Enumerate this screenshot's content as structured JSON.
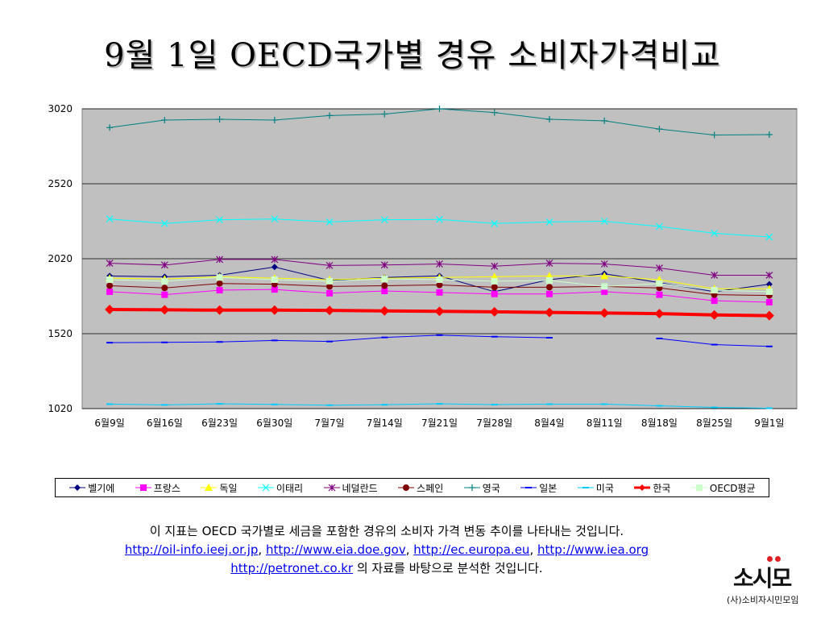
{
  "title": "9월 1일 OECD국가별 경유 소비자가격비교",
  "chart_data": {
    "type": "line",
    "categories": [
      "6월9일",
      "6월16일",
      "6월23일",
      "6월30일",
      "7월7일",
      "7월14일",
      "7월21일",
      "7월28일",
      "8월4일",
      "8월11일",
      "8월18일",
      "8월25일",
      "9월1일"
    ],
    "ylim": [
      1020,
      3020
    ],
    "yticks": [
      1020,
      1520,
      2020,
      2520,
      3020
    ],
    "grid": true,
    "legend": "bottom",
    "plot_background": "#c0c0c0",
    "series": [
      {
        "name": "벨기에",
        "color": "#000080",
        "marker": "diamond",
        "width": 1,
        "values": [
          1905,
          1900,
          1910,
          1965,
          1875,
          1895,
          1905,
          1800,
          1880,
          1920,
          1860,
          1800,
          1850
        ]
      },
      {
        "name": "프랑스",
        "color": "#ff00ff",
        "marker": "square",
        "width": 1,
        "values": [
          1800,
          1780,
          1810,
          1815,
          1790,
          1805,
          1795,
          1785,
          1785,
          1800,
          1780,
          1740,
          1730
        ]
      },
      {
        "name": "독일",
        "color": "#ffff00",
        "marker": "triangle",
        "width": 1,
        "values": [
          1890,
          1885,
          1900,
          1890,
          1880,
          1890,
          1895,
          1900,
          1905,
          1905,
          1880,
          1820,
          1820
        ]
      },
      {
        "name": "이태리",
        "color": "#00ffff",
        "marker": "x",
        "width": 1,
        "values": [
          2285,
          2255,
          2280,
          2285,
          2265,
          2280,
          2282,
          2255,
          2265,
          2270,
          2235,
          2190,
          2165
        ]
      },
      {
        "name": "네덜란드",
        "color": "#800080",
        "marker": "star",
        "width": 1,
        "values": [
          1990,
          1978,
          2015,
          2015,
          1975,
          1978,
          1985,
          1970,
          1990,
          1985,
          1958,
          1910,
          1910
        ]
      },
      {
        "name": "스페인",
        "color": "#800000",
        "marker": "circle",
        "width": 1,
        "values": [
          1840,
          1825,
          1855,
          1850,
          1835,
          1840,
          1845,
          1830,
          1830,
          1835,
          1825,
          1780,
          1775
        ]
      },
      {
        "name": "영국",
        "color": "#008080",
        "marker": "plus",
        "width": 1,
        "values": [
          2895,
          2945,
          2950,
          2945,
          2975,
          2985,
          3020,
          2995,
          2950,
          2940,
          2885,
          2845,
          2848
        ]
      },
      {
        "name": "일본",
        "color": "#0000ff",
        "marker": "dash",
        "width": 1,
        "values": [
          1460,
          1462,
          1465,
          1475,
          1468,
          1495,
          1510,
          1500,
          1493,
          null,
          1488,
          1447,
          1435
        ]
      },
      {
        "name": "미국",
        "color": "#00ccff",
        "marker": "dash",
        "width": 1,
        "values": [
          1050,
          1045,
          1052,
          1048,
          1043,
          1046,
          1052,
          1047,
          1050,
          1050,
          1039,
          1028,
          1023
        ]
      },
      {
        "name": "한국",
        "color": "#ff0000",
        "marker": "diamond-bold",
        "width": 4,
        "values": [
          1681,
          1679,
          1677,
          1677,
          1675,
          1672,
          1669,
          1666,
          1662,
          1658,
          1654,
          1645,
          1640
        ]
      },
      {
        "name": "OECD평균",
        "color": "#ccffcc",
        "marker": "square",
        "width": 1,
        "values": [
          1880,
          1870,
          1895,
          1880,
          1870,
          1885,
          1880,
          1870,
          1875,
          1835,
          1855,
          1810,
          1800
        ]
      }
    ]
  },
  "caption": {
    "line1": "이 지표는 OECD 국가별로 세금을 포함한 경유의 소비자 가격 변동 추이를 나타내는 것입니다.",
    "link1": "http://oil-info.ieej.or.jp",
    "sep1": ", ",
    "link2": "http://www.eia.doe.gov",
    "sep2": ", ",
    "link3": "http://ec.europa.eu",
    "sep3": ", ",
    "link4": "http://www.iea.org",
    "link5": "http://petronet.co.kr",
    "line3_tail": " 의 자료를 바탕으로 분석한 것입니다."
  },
  "logo": {
    "main": "소시모",
    "sub": "(사)소비자시민모임"
  }
}
